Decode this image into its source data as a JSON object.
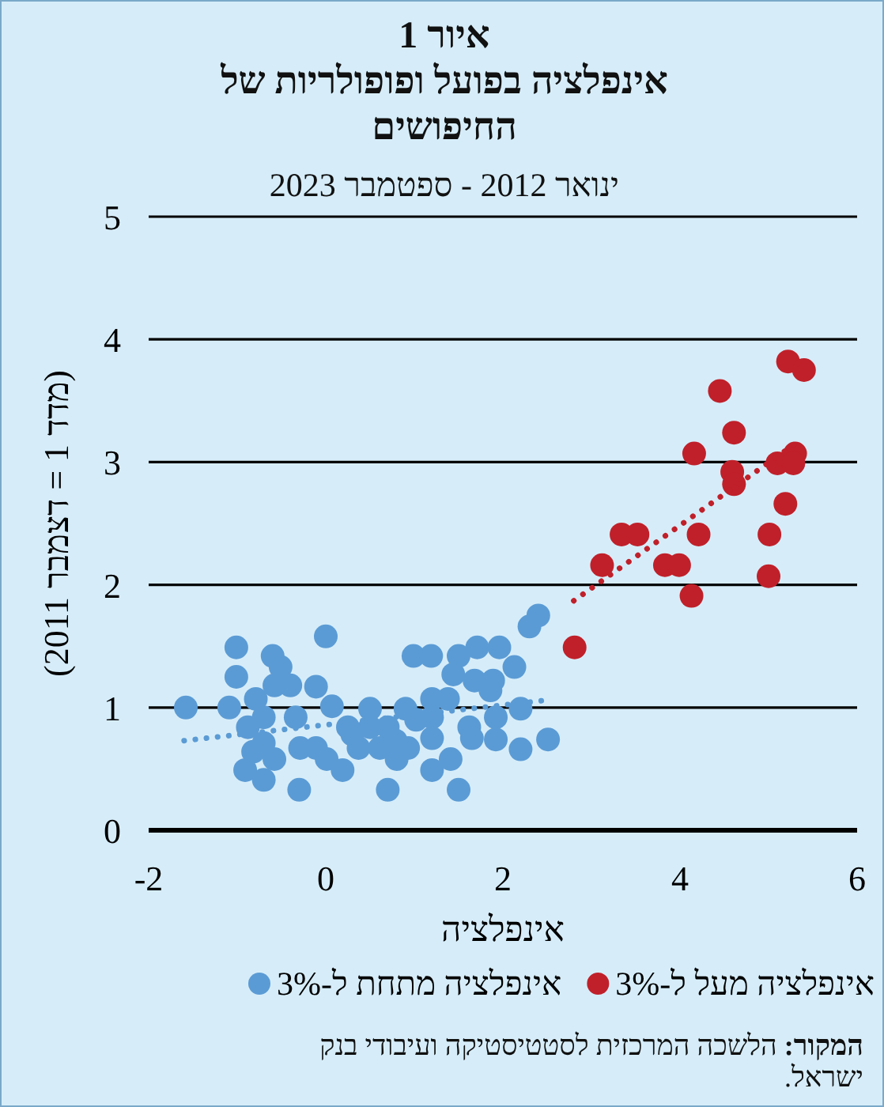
{
  "chart_data": {
    "type": "scatter",
    "title": "איור 1\nאינפלציה בפועל ופופולריות של החיפושים",
    "subtitle": "ינואר 2012 - ספטמבר 2023",
    "xlabel": "אינפלציה",
    "ylabel": "(מדד 1 = דצמבר 2011)",
    "xlim": [
      -2,
      6
    ],
    "xticks": [
      -2,
      0,
      2,
      4,
      6
    ],
    "ylim": [
      0,
      5
    ],
    "yticks": [
      0,
      1,
      2,
      3,
      4,
      5
    ],
    "grid": "y",
    "legend": "bottom",
    "marker": "circle",
    "series": [
      {
        "name": "אינפלציה מתחת ל-3%",
        "color": "#5b9bd5",
        "x": [
          -1.58,
          -1.09,
          -1.01,
          -1.01,
          -0.6,
          -0.51,
          0.0,
          -0.79,
          -0.58,
          -0.4,
          -0.11,
          -0.88,
          -0.7,
          -0.34,
          -0.7,
          -0.82,
          -0.91,
          -0.7,
          -0.58,
          -0.3,
          -0.29,
          -0.11,
          0.07,
          0.01,
          0.19,
          0.25,
          0.37,
          0.5,
          0.5,
          0.61,
          0.7,
          0.79,
          0.8,
          0.9,
          0.99,
          1.19,
          0.93,
          1.02,
          1.2,
          1.2,
          1.2,
          1.2,
          1.41,
          1.38,
          1.5,
          1.71,
          1.96,
          1.44,
          1.68,
          1.89,
          1.86,
          2.13,
          1.5,
          1.62,
          1.65,
          1.92,
          1.92,
          2.2,
          2.2,
          2.51,
          2.3,
          2.4,
          0.7,
          0.3
        ],
        "values": [
          1.0,
          1.0,
          1.49,
          1.25,
          1.42,
          1.33,
          1.58,
          1.07,
          1.18,
          1.18,
          1.17,
          0.84,
          0.92,
          0.92,
          0.71,
          0.64,
          0.49,
          0.41,
          0.58,
          0.33,
          0.67,
          0.67,
          1.01,
          0.58,
          0.49,
          0.84,
          0.67,
          0.99,
          0.84,
          0.67,
          0.33,
          0.73,
          0.58,
          0.99,
          1.42,
          1.42,
          0.67,
          0.9,
          1.07,
          0.92,
          0.75,
          0.49,
          0.58,
          1.07,
          1.42,
          1.49,
          1.49,
          1.27,
          1.22,
          1.22,
          1.14,
          1.33,
          0.33,
          0.84,
          0.75,
          0.92,
          0.74,
          0.99,
          0.66,
          0.74,
          1.66,
          1.75,
          0.84,
          0.78
        ]
      },
      {
        "name": "אינפלציה מעל ל-3%",
        "color": "#c0202a",
        "x": [
          5.22,
          5.4,
          4.45,
          4.61,
          4.16,
          4.59,
          4.61,
          5.1,
          5.3,
          5.28,
          5.19,
          4.21,
          5.01,
          3.34,
          3.52,
          3.12,
          3.83,
          3.99,
          5.0,
          4.13,
          2.81
        ],
        "values": [
          3.82,
          3.75,
          3.58,
          3.24,
          3.07,
          2.92,
          2.82,
          2.99,
          3.07,
          2.99,
          2.66,
          2.41,
          2.41,
          2.41,
          2.41,
          2.16,
          2.16,
          2.16,
          2.07,
          1.91,
          1.49
        ]
      },
      {
        "type": "line",
        "marker": "none",
        "line_style": "dotted",
        "color": "#5b9bd5",
        "x": [
          -1.6,
          2.5
        ],
        "values": [
          0.73,
          1.06
        ]
      },
      {
        "type": "line",
        "marker": "none",
        "line_style": "dotted",
        "color": "#c0202a",
        "x": [
          2.8,
          5.38
        ],
        "values": [
          1.87,
          3.19
        ]
      }
    ],
    "annotations": [
      "המקור: הלשכה המרכזית לסטטיסטיקה ועיבודי בנק ישראל."
    ]
  }
}
